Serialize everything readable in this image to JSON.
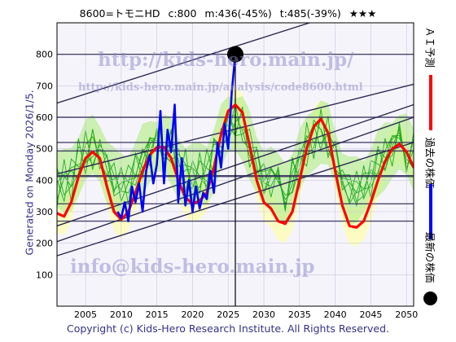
{
  "header": {
    "ticker": "8600=トモニHD",
    "current": "c:800",
    "median": "m:436(-45%)",
    "target": "t:485(-39%)",
    "rating": "★★★"
  },
  "side_text": "Generated on Monday 2026/1/5.",
  "copyright": "Copyright (c) Kids-Hero Research Institute. All Rights Reserved.",
  "watermarks": {
    "main": "http://kids-hero.main.jp/",
    "sub": "http://kids-hero.main.jp/analysis/code8600.html",
    "mail": "info@kids-hero.main.jp"
  },
  "legend": {
    "ai_forecast": "ＡＩ予測",
    "past_price": "過去の株価",
    "latest_price": "最新の株価"
  },
  "colors": {
    "forecast": "#ff0000",
    "past": "#0000ff",
    "latest": "#000000",
    "trend": "#2b2b55",
    "band_fill": "#b6ec8a",
    "band_lines": "#22aa22",
    "yellow_band": "#ffffaa"
  },
  "chart_data": {
    "type": "line",
    "xlim": [
      2001,
      2051
    ],
    "ylim": [
      0,
      900
    ],
    "x_ticks": [
      2005,
      2010,
      2015,
      2020,
      2025,
      2030,
      2035,
      2040,
      2045,
      2050
    ],
    "y_ticks": [
      100,
      200,
      300,
      400,
      500,
      600,
      700,
      800
    ],
    "latest_point": {
      "x": 2026.0,
      "y": 800
    },
    "horizontal_lines": [
      800,
      600,
      520,
      493,
      413,
      325,
      270
    ],
    "trend_lines": [
      {
        "x": [
          2001,
          2051
        ],
        "y": [
          645,
          1005
        ]
      },
      {
        "x": [
          2001,
          2051
        ],
        "y": [
          420,
          705
        ]
      },
      {
        "x": [
          2001,
          2051
        ],
        "y": [
          255,
          640
        ]
      },
      {
        "x": [
          2001,
          2051
        ],
        "y": [
          205,
          600
        ]
      },
      {
        "x": [
          2001,
          2051
        ],
        "y": [
          160,
          520
        ]
      }
    ],
    "series": [
      {
        "name": "ＡＩ予測",
        "x": [
          2001,
          2002,
          2003,
          2004,
          2005,
          2006,
          2007,
          2008,
          2009,
          2010,
          2011,
          2012,
          2013,
          2014,
          2015,
          2016,
          2017,
          2018,
          2019,
          2020,
          2021,
          2022,
          2023,
          2024,
          2025,
          2026,
          2027,
          2028,
          2029,
          2030,
          2031,
          2032,
          2033,
          2034,
          2035,
          2036,
          2037,
          2038,
          2039,
          2040,
          2041,
          2042,
          2043,
          2044,
          2045,
          2046,
          2047,
          2048,
          2049,
          2050,
          2051
        ],
        "y": [
          295,
          285,
          330,
          410,
          470,
          490,
          470,
          380,
          300,
          275,
          300,
          360,
          430,
          480,
          505,
          505,
          470,
          400,
          345,
          325,
          335,
          360,
          440,
          545,
          620,
          640,
          615,
          510,
          400,
          330,
          310,
          270,
          262,
          300,
          400,
          500,
          570,
          595,
          550,
          430,
          320,
          255,
          250,
          270,
          330,
          400,
          460,
          500,
          515,
          490,
          440
        ]
      },
      {
        "name": "過去の株価",
        "x": [
          2009.5,
          2010,
          2010.5,
          2011,
          2011.5,
          2012,
          2012.5,
          2013,
          2013.5,
          2014,
          2014.5,
          2015,
          2015.5,
          2016,
          2016.5,
          2017,
          2017.5,
          2018,
          2018.5,
          2019,
          2019.5,
          2020,
          2020.5,
          2021,
          2021.5,
          2022,
          2022.5,
          2023,
          2023.5,
          2024,
          2024.5,
          2025,
          2025.5,
          2026
        ],
        "y": [
          300,
          280,
          330,
          270,
          380,
          330,
          390,
          300,
          430,
          480,
          390,
          450,
          620,
          390,
          560,
          490,
          640,
          330,
          470,
          320,
          400,
          300,
          380,
          310,
          360,
          340,
          430,
          360,
          520,
          440,
          580,
          500,
          680,
          800
        ]
      }
    ]
  }
}
